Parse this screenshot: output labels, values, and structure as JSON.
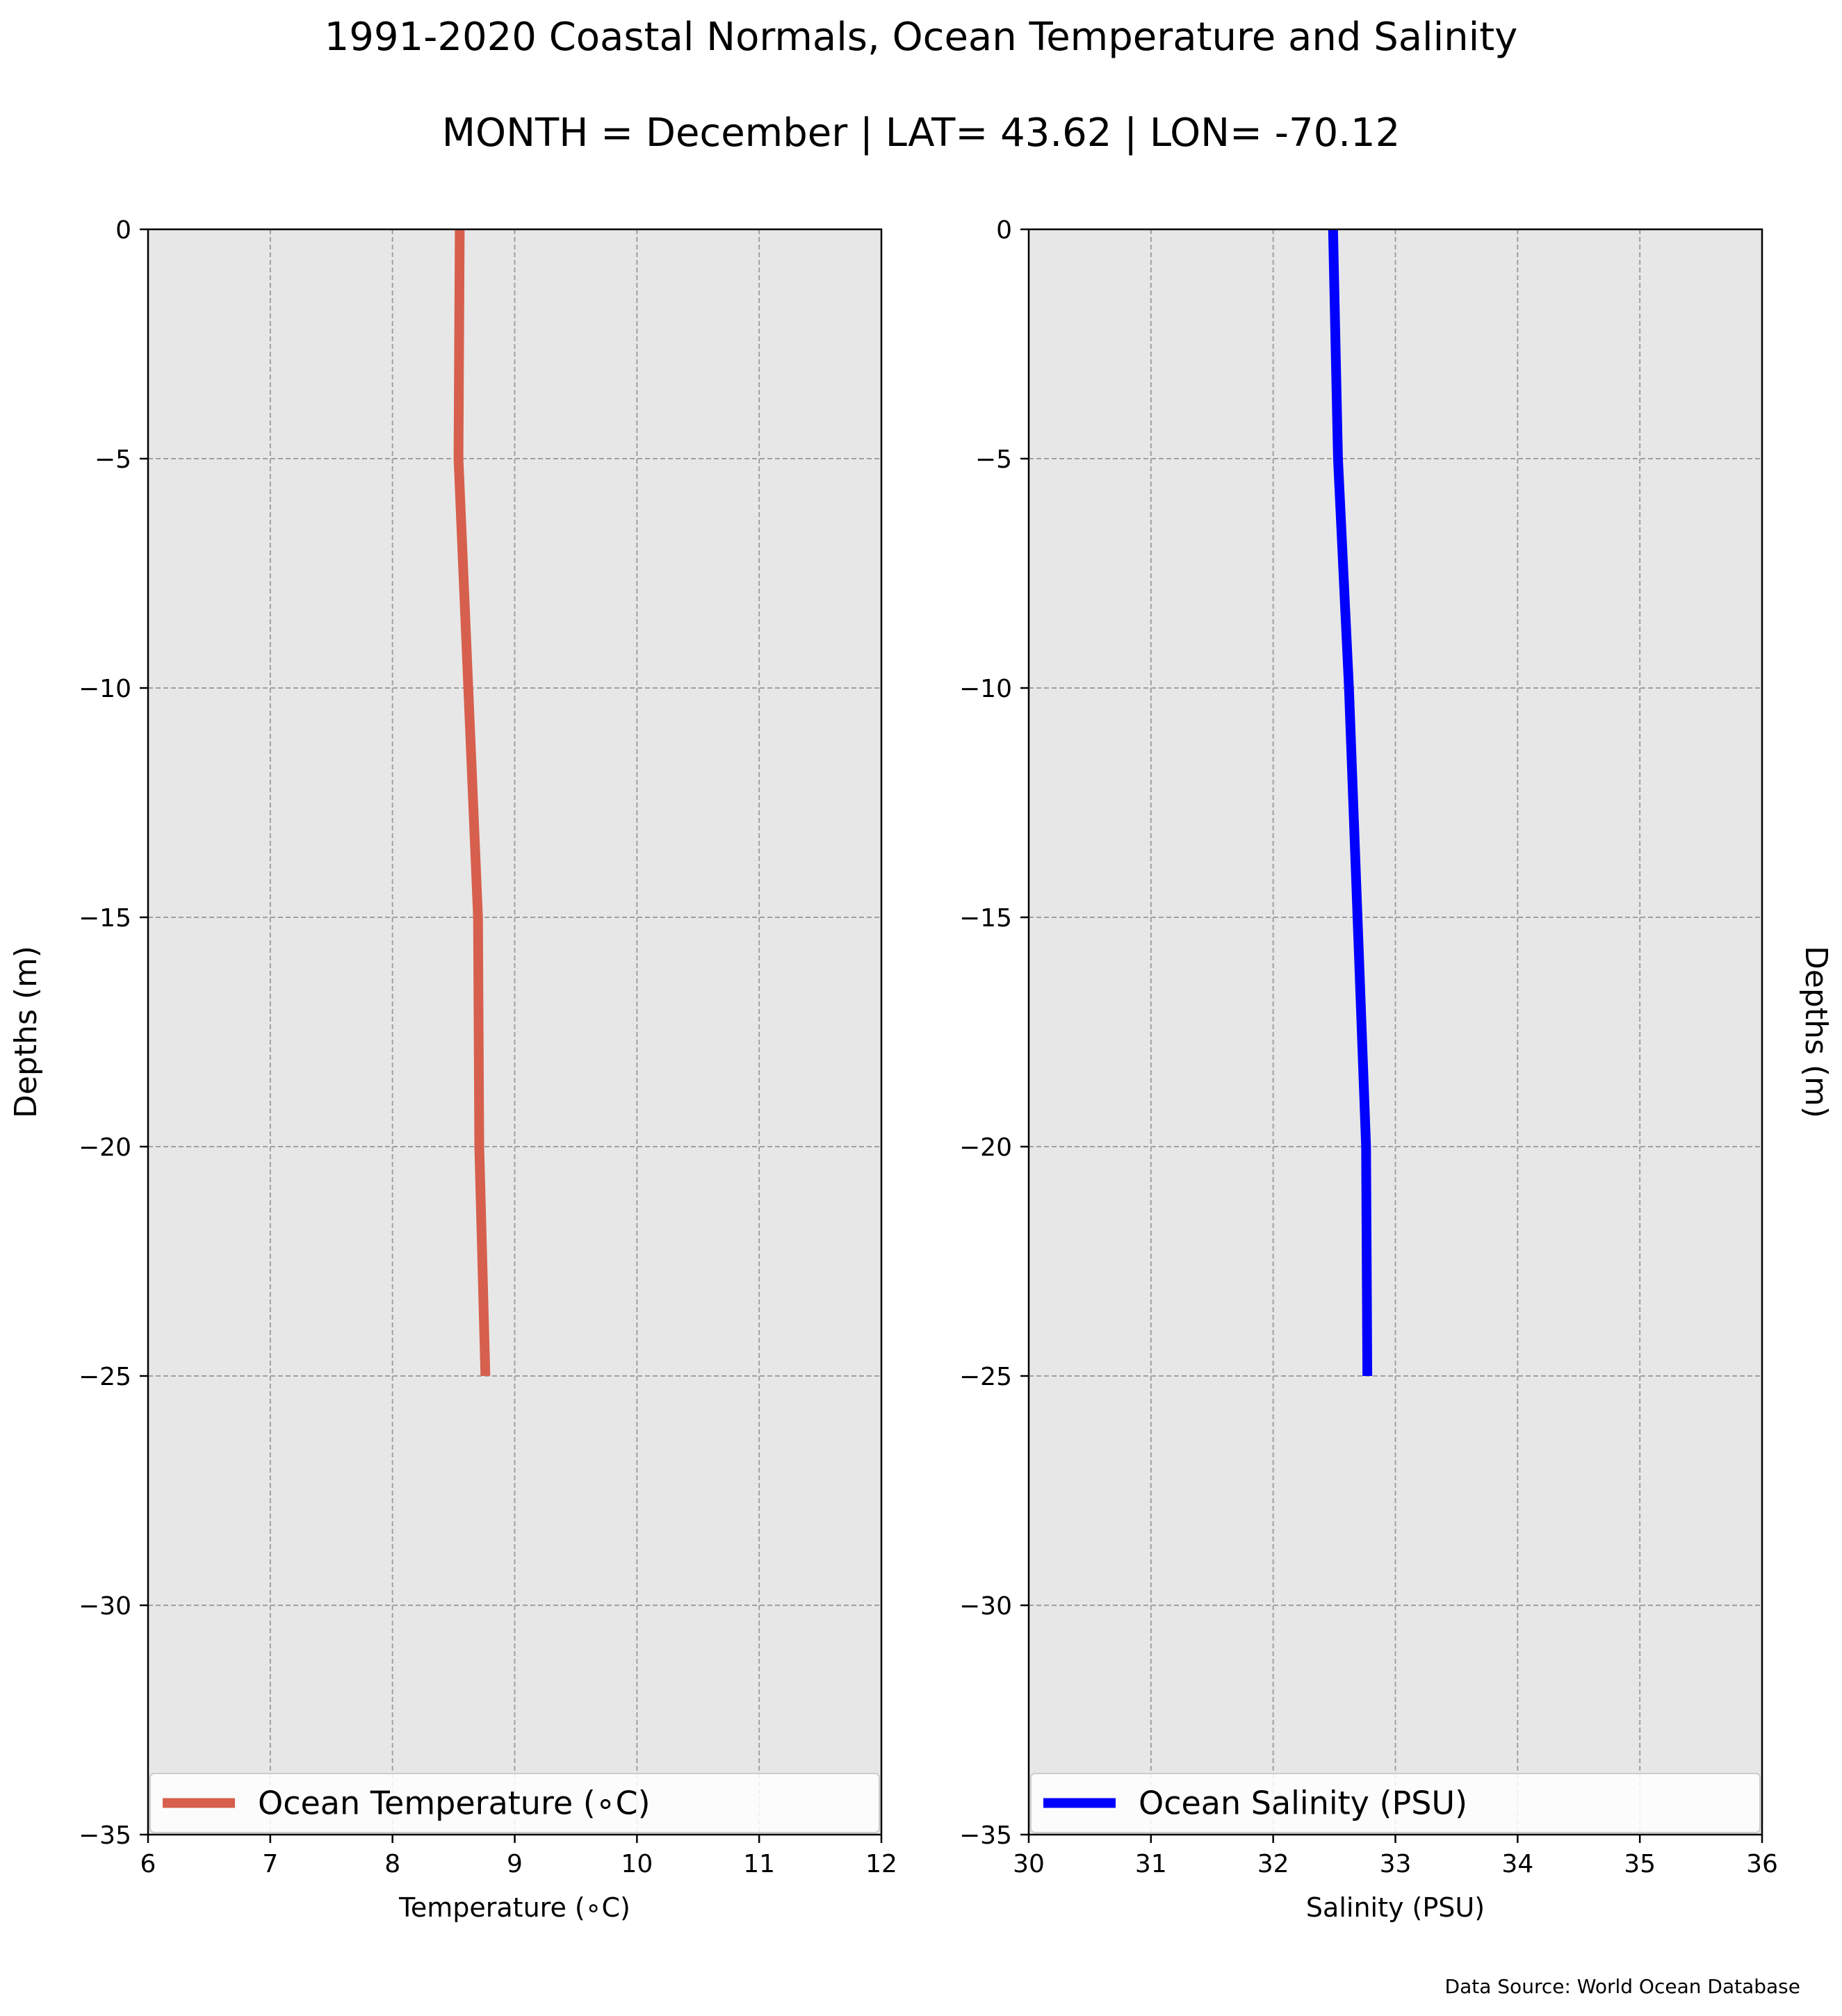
{
  "title": "1991-2020 Coastal Normals, Ocean Temperature and Salinity",
  "subtitle": "MONTH = December | LAT= 43.62 | LON= -70.12",
  "source_note": "Data Source: World Ocean Database",
  "chart_data": [
    {
      "type": "line",
      "xlabel": "Temperature (∘C)",
      "ylabel": "Depths (m)",
      "xlim": [
        6,
        12
      ],
      "ylim": [
        -35,
        0
      ],
      "xticks": [
        6,
        7,
        8,
        9,
        10,
        11,
        12
      ],
      "yticks": [
        0,
        -5,
        -10,
        -15,
        -20,
        -25,
        -30,
        -35
      ],
      "grid": true,
      "legend_position": "bottom",
      "series": [
        {
          "name": "Ocean Temperature (∘C)",
          "color": "#d6604d",
          "x": [
            8.55,
            8.54,
            8.62,
            8.7,
            8.71,
            8.76
          ],
          "y": [
            0,
            -5,
            -10,
            -15,
            -20,
            -25
          ]
        }
      ]
    },
    {
      "type": "line",
      "xlabel": "Salinity (PSU)",
      "ylabel": "Depths (m)",
      "xlim": [
        30,
        36
      ],
      "ylim": [
        -35,
        0
      ],
      "xticks": [
        30,
        31,
        32,
        33,
        34,
        35,
        36
      ],
      "yticks": [
        0,
        -5,
        -10,
        -15,
        -20,
        -25,
        -30,
        -35
      ],
      "grid": true,
      "legend_position": "bottom",
      "series": [
        {
          "name": "Ocean Salinity (PSU)",
          "color": "#0000ff",
          "x": [
            32.49,
            32.53,
            32.62,
            32.69,
            32.76,
            32.77
          ],
          "y": [
            0,
            -5,
            -10,
            -15,
            -20,
            -25
          ]
        }
      ]
    }
  ]
}
